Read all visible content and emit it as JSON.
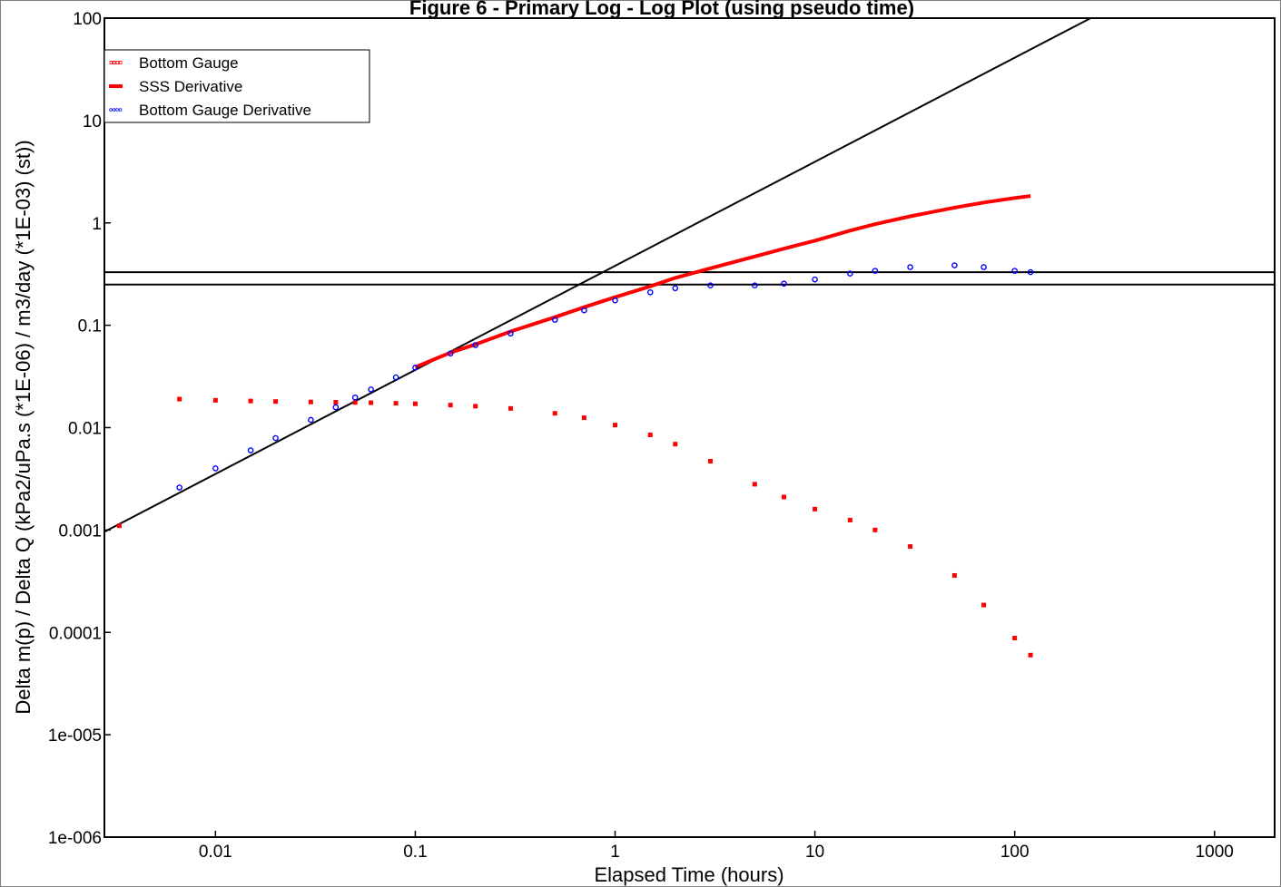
{
  "chart_data": {
    "type": "scatter",
    "title": "Figure 6 - Primary Log - Log Plot (using pseudo time)",
    "xlabel": "Elapsed Time (hours)",
    "ylabel": "Delta m(p) / Delta Q (kPa2/uPa.s (*1E-06) / m3/day (*1E-03) (st))",
    "x_scale": "log",
    "y_scale": "log",
    "xlim": [
      0.00278,
      2000
    ],
    "ylim": [
      1e-06,
      100
    ],
    "x_ticks": [
      {
        "value": 0.01,
        "label": "0.01"
      },
      {
        "value": 0.1,
        "label": "0.1"
      },
      {
        "value": 1,
        "label": "1"
      },
      {
        "value": 10,
        "label": "10"
      },
      {
        "value": 100,
        "label": "100"
      },
      {
        "value": 1000,
        "label": "1000"
      }
    ],
    "y_ticks": [
      {
        "value": 1e-06,
        "label": "1e-006"
      },
      {
        "value": 1e-05,
        "label": "1e-005"
      },
      {
        "value": 0.0001,
        "label": "0.0001"
      },
      {
        "value": 0.001,
        "label": "0.001"
      },
      {
        "value": 0.01,
        "label": "0.01"
      },
      {
        "value": 0.1,
        "label": "0.1"
      },
      {
        "value": 1,
        "label": "1"
      },
      {
        "value": 10,
        "label": "10"
      },
      {
        "value": 100,
        "label": "100"
      }
    ],
    "grid": false,
    "legend_position": "top-left",
    "series": [
      {
        "name": "Bottom Gauge",
        "color": "#ff0000",
        "marker": "small-square",
        "x": [
          0.0033,
          0.0066,
          0.01,
          0.015,
          0.02,
          0.03,
          0.04,
          0.05,
          0.06,
          0.08,
          0.1,
          0.15,
          0.2,
          0.3,
          0.5,
          0.7,
          1.0,
          1.5,
          2,
          3,
          5,
          7,
          10,
          15,
          20,
          30,
          50,
          70,
          100,
          120
        ],
        "y": [
          0.0011,
          0.019,
          0.0185,
          0.0182,
          0.018,
          0.0178,
          0.0177,
          0.0176,
          0.0175,
          0.0173,
          0.0171,
          0.0166,
          0.0162,
          0.0154,
          0.0138,
          0.0125,
          0.0106,
          0.0085,
          0.0069,
          0.0047,
          0.0028,
          0.0021,
          0.0016,
          0.00125,
          0.001,
          0.00069,
          0.00036,
          0.000185,
          8.8e-05,
          6e-05
        ]
      },
      {
        "name": "SSS Derivative",
        "color": "#ff0000",
        "marker": "line",
        "x": [
          0.1,
          0.15,
          0.2,
          0.3,
          0.5,
          0.7,
          1.0,
          1.5,
          2,
          3,
          5,
          7,
          10,
          15,
          20,
          30,
          50,
          70,
          100,
          120
        ],
        "y": [
          0.039,
          0.054,
          0.065,
          0.087,
          0.12,
          0.15,
          0.188,
          0.24,
          0.29,
          0.36,
          0.47,
          0.56,
          0.67,
          0.84,
          0.97,
          1.16,
          1.41,
          1.58,
          1.75,
          1.83
        ]
      },
      {
        "name": "Bottom Gauge Derivative",
        "color": "#0000ff",
        "marker": "small-circle",
        "x": [
          0.0066,
          0.01,
          0.015,
          0.02,
          0.03,
          0.04,
          0.05,
          0.06,
          0.08,
          0.1,
          0.15,
          0.2,
          0.3,
          0.5,
          0.7,
          1.0,
          1.5,
          2,
          3,
          5,
          7,
          10,
          15,
          20,
          30,
          50,
          70,
          100,
          120
        ],
        "y": [
          0.0026,
          0.004,
          0.006,
          0.0079,
          0.0119,
          0.0158,
          0.0197,
          0.0236,
          0.031,
          0.0385,
          0.053,
          0.064,
          0.083,
          0.113,
          0.14,
          0.175,
          0.21,
          0.23,
          0.245,
          0.245,
          0.255,
          0.28,
          0.32,
          0.34,
          0.37,
          0.385,
          0.37,
          0.34,
          0.33
        ]
      }
    ],
    "annotation_lines": [
      {
        "name": "unit-slope line",
        "from": [
          0.00278,
          0.00096
        ],
        "to": [
          240,
          100
        ]
      },
      {
        "name": "upper radial flow line",
        "value": 0.33
      },
      {
        "name": "lower radial flow line",
        "value": 0.25
      }
    ]
  }
}
